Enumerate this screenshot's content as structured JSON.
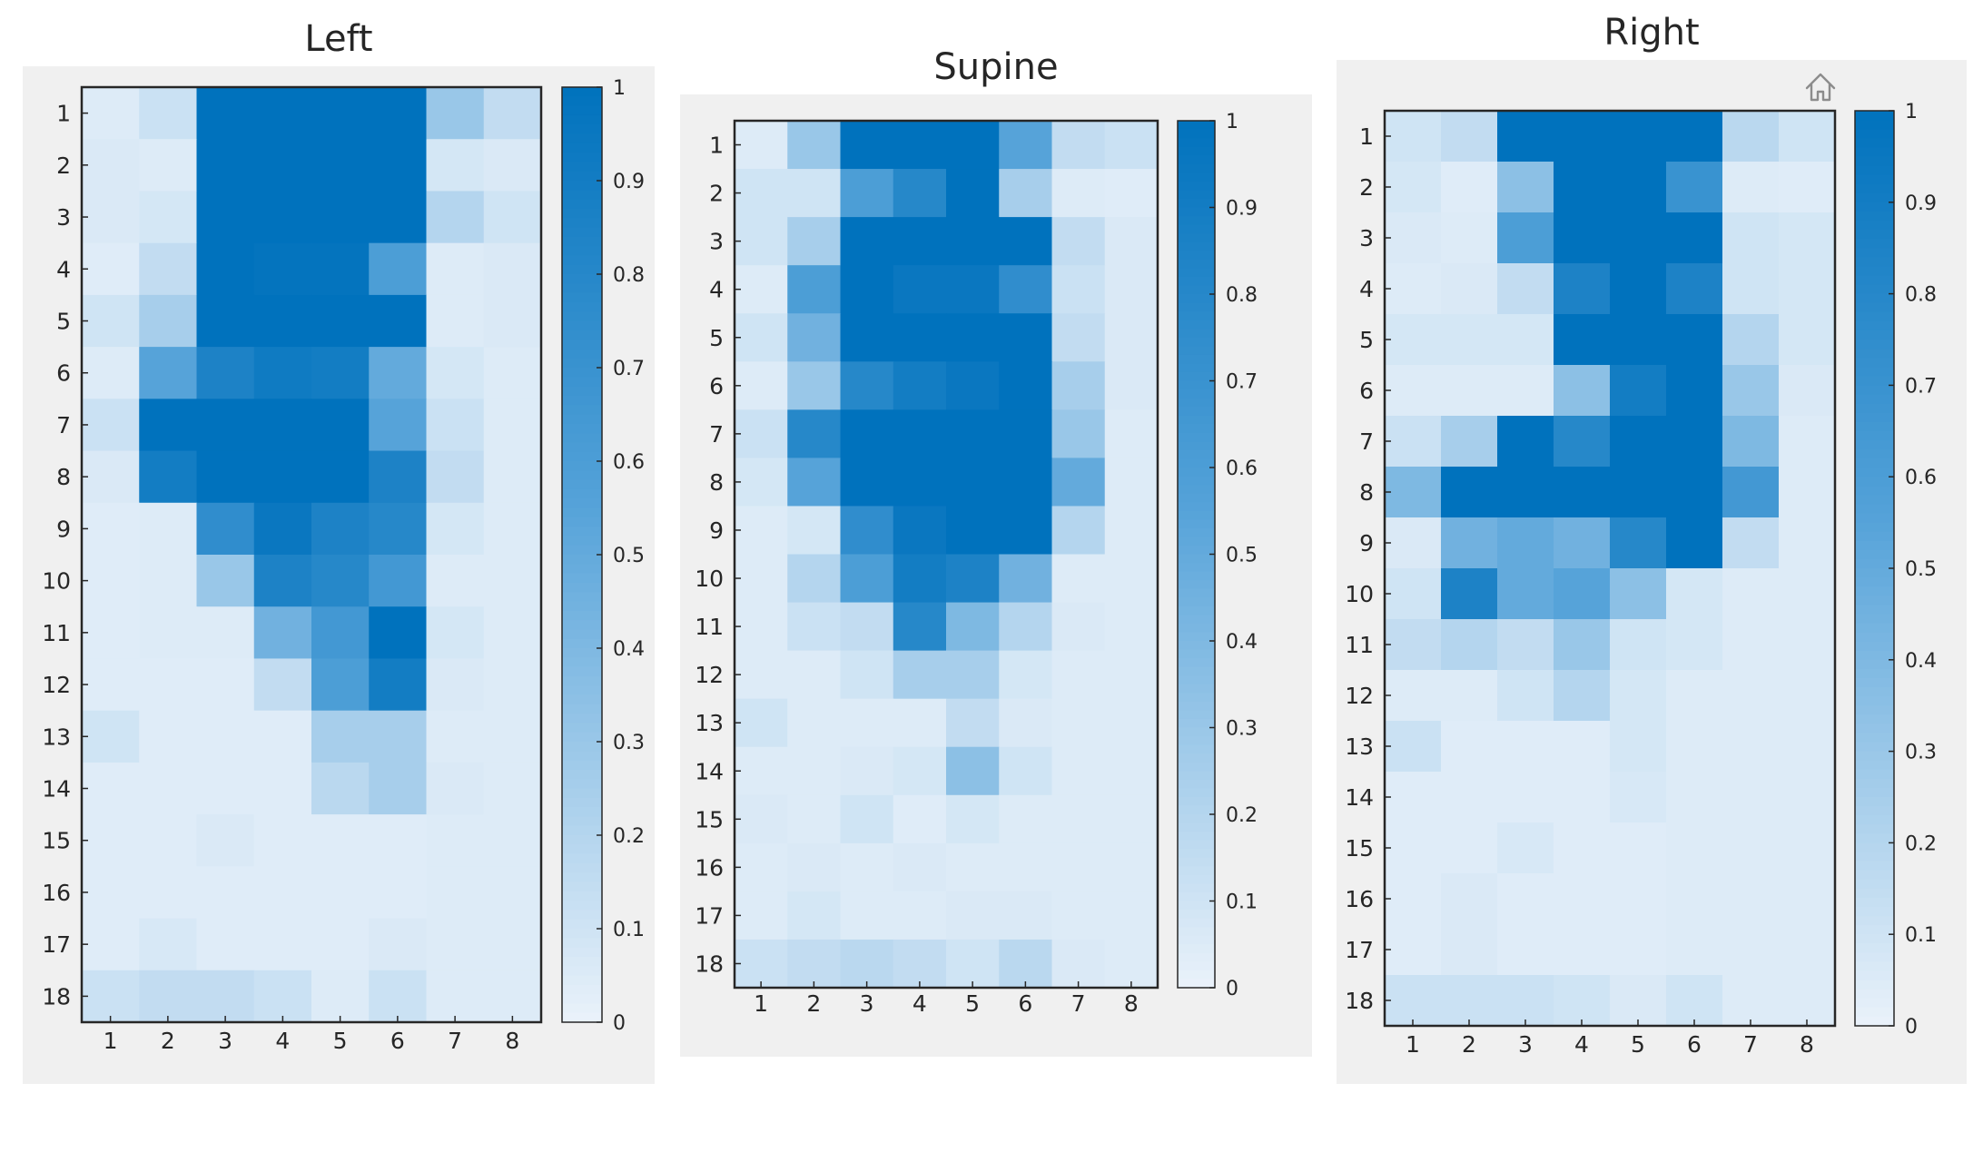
{
  "chart_data": [
    {
      "type": "heatmap",
      "title": "Left",
      "x_categories": [
        "1",
        "2",
        "3",
        "4",
        "5",
        "6",
        "7",
        "8"
      ],
      "y_categories": [
        "1",
        "2",
        "3",
        "4",
        "5",
        "6",
        "7",
        "8",
        "9",
        "10",
        "11",
        "12",
        "13",
        "14",
        "15",
        "16",
        "17",
        "18"
      ],
      "clim": [
        0,
        1
      ],
      "colorbar_ticks": [
        "0",
        "0.1",
        "0.2",
        "0.3",
        "0.4",
        "0.5",
        "0.6",
        "0.7",
        "0.8",
        "0.9",
        "1"
      ],
      "values": [
        [
          0.05,
          0.12,
          1.0,
          1.0,
          1.0,
          1.0,
          0.3,
          0.15
        ],
        [
          0.06,
          0.05,
          1.0,
          1.0,
          1.0,
          1.0,
          0.08,
          0.06
        ],
        [
          0.06,
          0.08,
          1.0,
          1.0,
          1.0,
          1.0,
          0.2,
          0.1
        ],
        [
          0.04,
          0.15,
          1.0,
          0.98,
          0.98,
          0.6,
          0.05,
          0.06
        ],
        [
          0.1,
          0.25,
          1.0,
          1.0,
          1.0,
          1.0,
          0.05,
          0.06
        ],
        [
          0.05,
          0.55,
          0.85,
          0.92,
          0.9,
          0.5,
          0.08,
          0.05
        ],
        [
          0.12,
          1.0,
          1.0,
          1.0,
          1.0,
          0.55,
          0.12,
          0.05
        ],
        [
          0.06,
          0.9,
          1.0,
          1.0,
          1.0,
          0.85,
          0.15,
          0.05
        ],
        [
          0.04,
          0.05,
          0.75,
          0.95,
          0.85,
          0.8,
          0.08,
          0.05
        ],
        [
          0.04,
          0.05,
          0.3,
          0.85,
          0.8,
          0.65,
          0.05,
          0.05
        ],
        [
          0.04,
          0.05,
          0.05,
          0.45,
          0.65,
          1.0,
          0.08,
          0.05
        ],
        [
          0.04,
          0.04,
          0.04,
          0.15,
          0.6,
          0.9,
          0.06,
          0.05
        ],
        [
          0.1,
          0.04,
          0.04,
          0.04,
          0.25,
          0.25,
          0.05,
          0.05
        ],
        [
          0.04,
          0.04,
          0.04,
          0.04,
          0.18,
          0.25,
          0.06,
          0.05
        ],
        [
          0.04,
          0.04,
          0.06,
          0.04,
          0.04,
          0.04,
          0.05,
          0.05
        ],
        [
          0.04,
          0.04,
          0.04,
          0.04,
          0.04,
          0.04,
          0.05,
          0.05
        ],
        [
          0.04,
          0.07,
          0.04,
          0.04,
          0.04,
          0.06,
          0.05,
          0.05
        ],
        [
          0.12,
          0.15,
          0.15,
          0.12,
          0.05,
          0.12,
          0.05,
          0.05
        ]
      ]
    },
    {
      "type": "heatmap",
      "title": "Supine",
      "x_categories": [
        "1",
        "2",
        "3",
        "4",
        "5",
        "6",
        "7",
        "8"
      ],
      "y_categories": [
        "1",
        "2",
        "3",
        "4",
        "5",
        "6",
        "7",
        "8",
        "9",
        "10",
        "11",
        "12",
        "13",
        "14",
        "15",
        "16",
        "17",
        "18"
      ],
      "clim": [
        0,
        1
      ],
      "colorbar_ticks": [
        "0",
        "0.1",
        "0.2",
        "0.3",
        "0.4",
        "0.5",
        "0.6",
        "0.7",
        "0.8",
        "0.9",
        "1"
      ],
      "values": [
        [
          0.05,
          0.3,
          1.0,
          1.0,
          1.0,
          0.55,
          0.15,
          0.12
        ],
        [
          0.1,
          0.1,
          0.6,
          0.8,
          1.0,
          0.25,
          0.05,
          0.04
        ],
        [
          0.1,
          0.25,
          1.0,
          1.0,
          1.0,
          1.0,
          0.15,
          0.06
        ],
        [
          0.05,
          0.6,
          1.0,
          0.95,
          0.95,
          0.75,
          0.12,
          0.06
        ],
        [
          0.1,
          0.45,
          1.0,
          1.0,
          1.0,
          1.0,
          0.15,
          0.06
        ],
        [
          0.05,
          0.3,
          0.8,
          0.9,
          0.95,
          1.0,
          0.25,
          0.06
        ],
        [
          0.12,
          0.8,
          1.0,
          1.0,
          1.0,
          1.0,
          0.3,
          0.05
        ],
        [
          0.08,
          0.55,
          1.0,
          1.0,
          1.0,
          1.0,
          0.5,
          0.05
        ],
        [
          0.05,
          0.08,
          0.75,
          0.95,
          1.0,
          1.0,
          0.2,
          0.05
        ],
        [
          0.05,
          0.2,
          0.6,
          0.9,
          0.85,
          0.45,
          0.05,
          0.05
        ],
        [
          0.05,
          0.12,
          0.15,
          0.8,
          0.4,
          0.2,
          0.06,
          0.05
        ],
        [
          0.05,
          0.05,
          0.1,
          0.25,
          0.25,
          0.08,
          0.05,
          0.05
        ],
        [
          0.1,
          0.05,
          0.05,
          0.05,
          0.15,
          0.06,
          0.05,
          0.05
        ],
        [
          0.05,
          0.05,
          0.06,
          0.08,
          0.35,
          0.1,
          0.05,
          0.05
        ],
        [
          0.06,
          0.05,
          0.1,
          0.04,
          0.08,
          0.05,
          0.05,
          0.05
        ],
        [
          0.05,
          0.06,
          0.05,
          0.06,
          0.05,
          0.05,
          0.05,
          0.05
        ],
        [
          0.05,
          0.08,
          0.05,
          0.05,
          0.06,
          0.06,
          0.05,
          0.05
        ],
        [
          0.12,
          0.15,
          0.18,
          0.15,
          0.1,
          0.18,
          0.06,
          0.05
        ]
      ]
    },
    {
      "type": "heatmap",
      "title": "Right",
      "x_categories": [
        "1",
        "2",
        "3",
        "4",
        "5",
        "6",
        "7",
        "8"
      ],
      "y_categories": [
        "1",
        "2",
        "3",
        "4",
        "5",
        "6",
        "7",
        "8",
        "9",
        "10",
        "11",
        "12",
        "13",
        "14",
        "15",
        "16",
        "17",
        "18"
      ],
      "clim": [
        0,
        1
      ],
      "colorbar_ticks": [
        "0",
        "0.1",
        "0.2",
        "0.3",
        "0.4",
        "0.5",
        "0.6",
        "0.7",
        "0.8",
        "0.9",
        "1"
      ],
      "values": [
        [
          0.1,
          0.15,
          1.0,
          1.0,
          1.0,
          1.0,
          0.18,
          0.1
        ],
        [
          0.08,
          0.04,
          0.35,
          1.0,
          1.0,
          0.7,
          0.05,
          0.04
        ],
        [
          0.06,
          0.05,
          0.6,
          1.0,
          1.0,
          1.0,
          0.1,
          0.08
        ],
        [
          0.05,
          0.06,
          0.15,
          0.85,
          1.0,
          0.85,
          0.1,
          0.08
        ],
        [
          0.08,
          0.08,
          0.08,
          1.0,
          1.0,
          1.0,
          0.2,
          0.08
        ],
        [
          0.05,
          0.05,
          0.05,
          0.35,
          0.9,
          1.0,
          0.3,
          0.06
        ],
        [
          0.12,
          0.25,
          1.0,
          0.8,
          1.0,
          1.0,
          0.4,
          0.05
        ],
        [
          0.4,
          1.0,
          1.0,
          1.0,
          1.0,
          1.0,
          0.65,
          0.05
        ],
        [
          0.06,
          0.45,
          0.5,
          0.45,
          0.8,
          1.0,
          0.15,
          0.05
        ],
        [
          0.1,
          0.85,
          0.5,
          0.55,
          0.35,
          0.08,
          0.05,
          0.05
        ],
        [
          0.15,
          0.2,
          0.15,
          0.3,
          0.1,
          0.08,
          0.05,
          0.05
        ],
        [
          0.05,
          0.05,
          0.1,
          0.2,
          0.08,
          0.05,
          0.05,
          0.05
        ],
        [
          0.12,
          0.04,
          0.04,
          0.04,
          0.08,
          0.05,
          0.05,
          0.05
        ],
        [
          0.04,
          0.04,
          0.04,
          0.04,
          0.07,
          0.05,
          0.05,
          0.05
        ],
        [
          0.04,
          0.04,
          0.07,
          0.04,
          0.04,
          0.05,
          0.05,
          0.05
        ],
        [
          0.04,
          0.06,
          0.04,
          0.04,
          0.04,
          0.05,
          0.05,
          0.05
        ],
        [
          0.04,
          0.06,
          0.04,
          0.04,
          0.04,
          0.05,
          0.05,
          0.05
        ],
        [
          0.12,
          0.12,
          0.12,
          0.1,
          0.06,
          0.1,
          0.05,
          0.05
        ]
      ]
    }
  ],
  "toolbar": {
    "icon": "home-icon"
  },
  "colors": {
    "panel_bg": "#f0f0f0",
    "scale_low": "#eaf2fa",
    "scale_mid": "#56a3d9",
    "scale_high": "#0072bd",
    "axis": "#262626"
  }
}
